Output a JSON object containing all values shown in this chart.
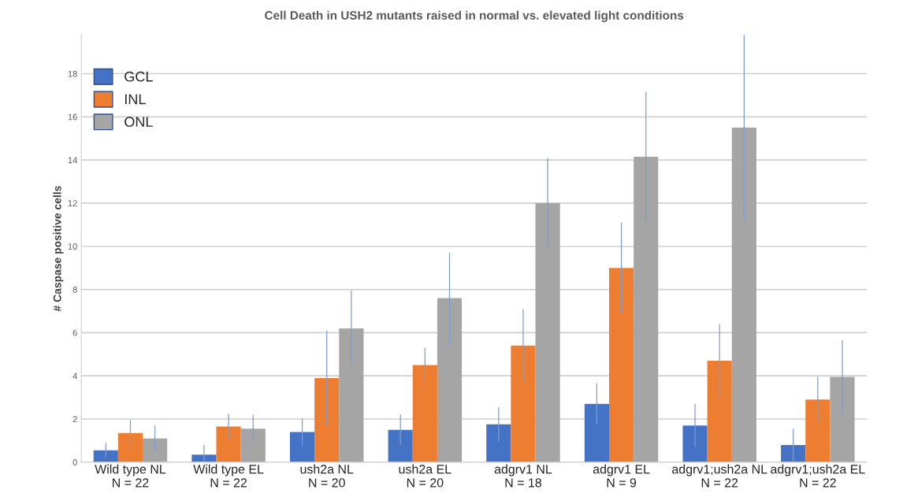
{
  "chart_data": {
    "type": "bar",
    "title": "Cell Death in USH2 mutants raised in normal vs. elevated light conditions",
    "ylabel": "# Caspase positive cells",
    "categories": [
      "Wild type NL\nN = 22",
      "Wild type EL\nN = 22",
      "ush2a NL\nN = 20",
      "ush2a EL\nN = 20",
      "adgrv1 NL\nN = 18",
      "adgrv1 EL\nN = 9",
      "adgrv1;ush2a NL\nN = 22",
      "adgrv1;ush2a EL\nN = 22"
    ],
    "series": [
      {
        "name": "GCL",
        "color": "#4472c4",
        "values": [
          0.55,
          0.35,
          1.4,
          1.5,
          1.75,
          2.7,
          1.7,
          0.8
        ],
        "errors": [
          0.35,
          0.45,
          0.65,
          0.7,
          0.8,
          0.95,
          1.0,
          0.75
        ]
      },
      {
        "name": "INL",
        "color": "#ed7d31",
        "values": [
          1.35,
          1.65,
          3.9,
          4.5,
          5.4,
          9.0,
          4.7,
          2.9
        ],
        "errors": [
          0.6,
          0.6,
          2.2,
          0.8,
          1.7,
          2.1,
          1.7,
          1.05
        ]
      },
      {
        "name": "ONL",
        "color": "#a5a5a5",
        "values": [
          1.1,
          1.55,
          6.2,
          7.6,
          12.0,
          14.15,
          15.5,
          3.95
        ],
        "errors": [
          0.6,
          0.65,
          1.75,
          2.1,
          2.1,
          3.0,
          4.3,
          1.7
        ]
      }
    ],
    "ylim": [
      0,
      19.8
    ],
    "yticks": [
      0,
      2,
      4,
      6,
      8,
      10,
      12,
      14,
      16,
      18
    ],
    "grid": "y",
    "legend": "top left"
  }
}
